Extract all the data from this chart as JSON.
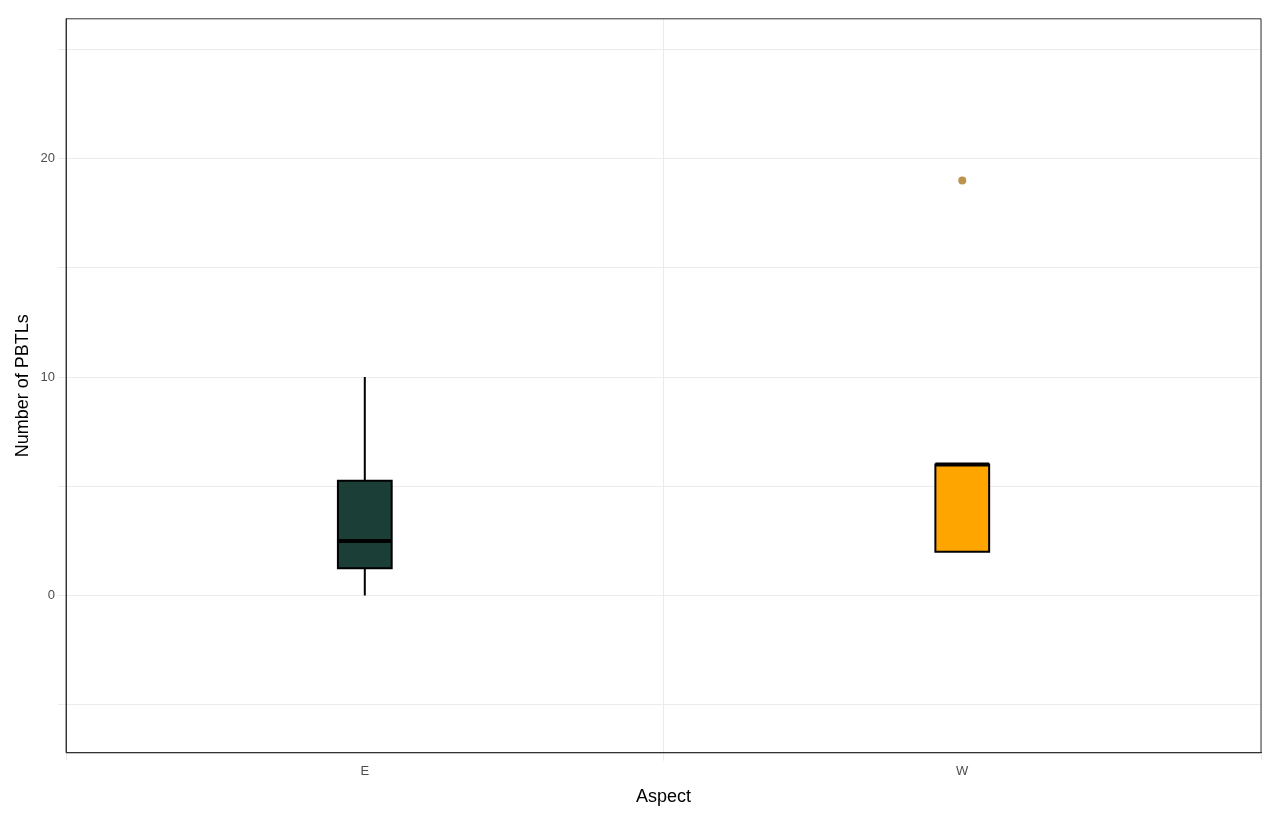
{
  "chart_data": {
    "type": "box",
    "xlabel": "Aspect",
    "ylabel": "Number of PBTLs",
    "categories": [
      "E",
      "W"
    ],
    "colors": [
      "#1b3f37",
      "#ffa500"
    ],
    "boxes": [
      {
        "low": 0,
        "q1": 1.25,
        "median": 2.5,
        "q3": 5.25,
        "high": 10
      },
      {
        "low": 2,
        "q1": 2,
        "median": 6,
        "q3": 6,
        "high": 6,
        "outliers": [
          19
        ]
      }
    ],
    "ylim": [
      -7.2,
      26.4
    ],
    "yticks": [
      {
        "value": -5,
        "label": null
      },
      0,
      {
        "value": 5,
        "label": null
      },
      10,
      {
        "value": 15,
        "label": null
      },
      20,
      {
        "value": 25,
        "label": null
      }
    ],
    "grid": true,
    "legend": false
  }
}
